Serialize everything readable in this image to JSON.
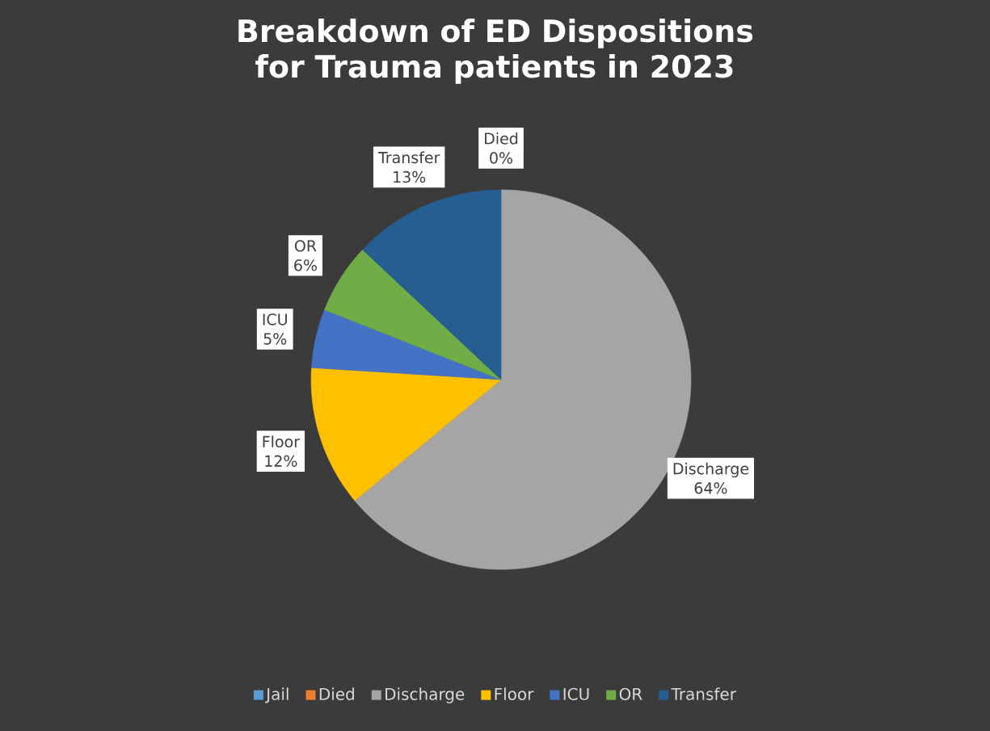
{
  "chart_data": {
    "type": "pie",
    "title": "Breakdown of ED Dispositions for Trauma patients in 2023",
    "categories": [
      "Jail",
      "Died",
      "Discharge",
      "Floor",
      "ICU",
      "OR",
      "Transfer"
    ],
    "values": [
      0,
      0,
      64,
      12,
      5,
      6,
      13
    ],
    "value_labels": [
      null,
      "0%",
      "64%",
      "12%",
      "5%",
      "6%",
      "13%"
    ],
    "colors": [
      "#5b9bd5",
      "#ed7d31",
      "#a5a5a5",
      "#ffc000",
      "#4472c4",
      "#70ad47",
      "#255e91"
    ],
    "legend": "bottom"
  }
}
